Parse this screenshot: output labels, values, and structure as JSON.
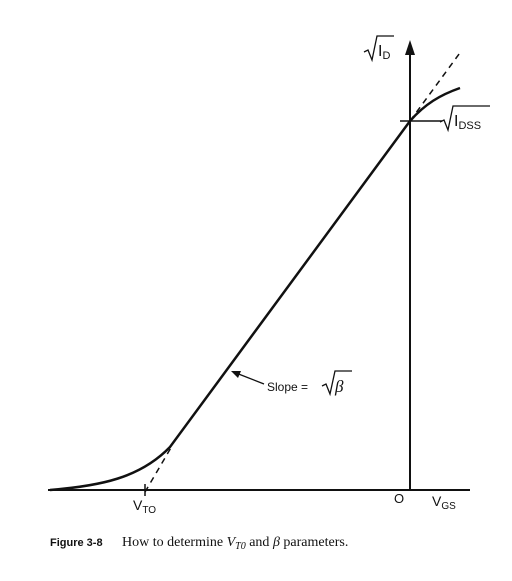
{
  "axes": {
    "y_label": {
      "text": "I",
      "subscript": "D"
    },
    "x_label": {
      "text": "V",
      "subscript": "GS"
    },
    "origin": "O"
  },
  "markers": {
    "idss": {
      "text": "I",
      "subscript": "DSS"
    },
    "vto": {
      "text": "V",
      "subscript": "TO"
    }
  },
  "annotation": {
    "text": "Slope = ",
    "symbol": "β"
  },
  "caption": {
    "number": "Figure 3-8",
    "before": "How to determine ",
    "symbol": "V",
    "subscript": "T0",
    "middle": " and ",
    "symbol2": "β",
    "after": " parameters."
  }
}
